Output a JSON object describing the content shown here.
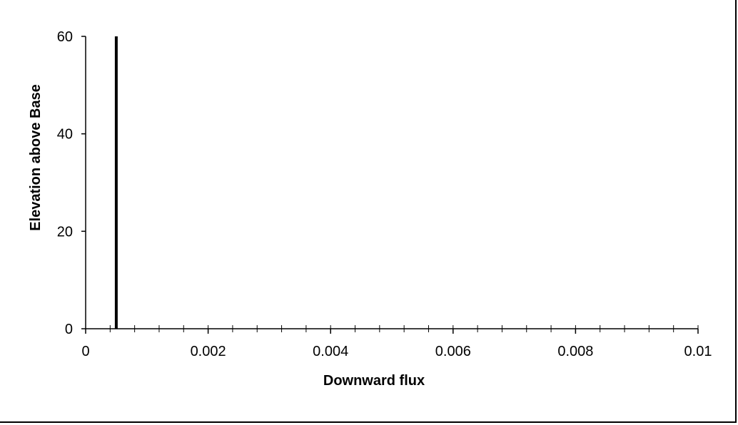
{
  "chart_data": {
    "type": "line",
    "title": "",
    "xlabel": "Downward flux",
    "ylabel": "Elevation above Base",
    "xlim": [
      0,
      0.01
    ],
    "ylim": [
      0,
      60
    ],
    "x_ticks": [
      0,
      0.002,
      0.004,
      0.006,
      0.008,
      0.01
    ],
    "x_tick_labels": [
      "0",
      "0.002",
      "0.004",
      "0.006",
      "0.008",
      "0.01"
    ],
    "x_minor_step": 0.0004,
    "y_ticks": [
      0,
      20,
      40,
      60
    ],
    "y_tick_labels": [
      "0",
      "20",
      "40",
      "60"
    ],
    "grid": false,
    "legend": "none",
    "series": [
      {
        "points": [
          [
            0.0005,
            0
          ],
          [
            0.0005,
            60
          ]
        ],
        "color": "#000000"
      }
    ]
  }
}
